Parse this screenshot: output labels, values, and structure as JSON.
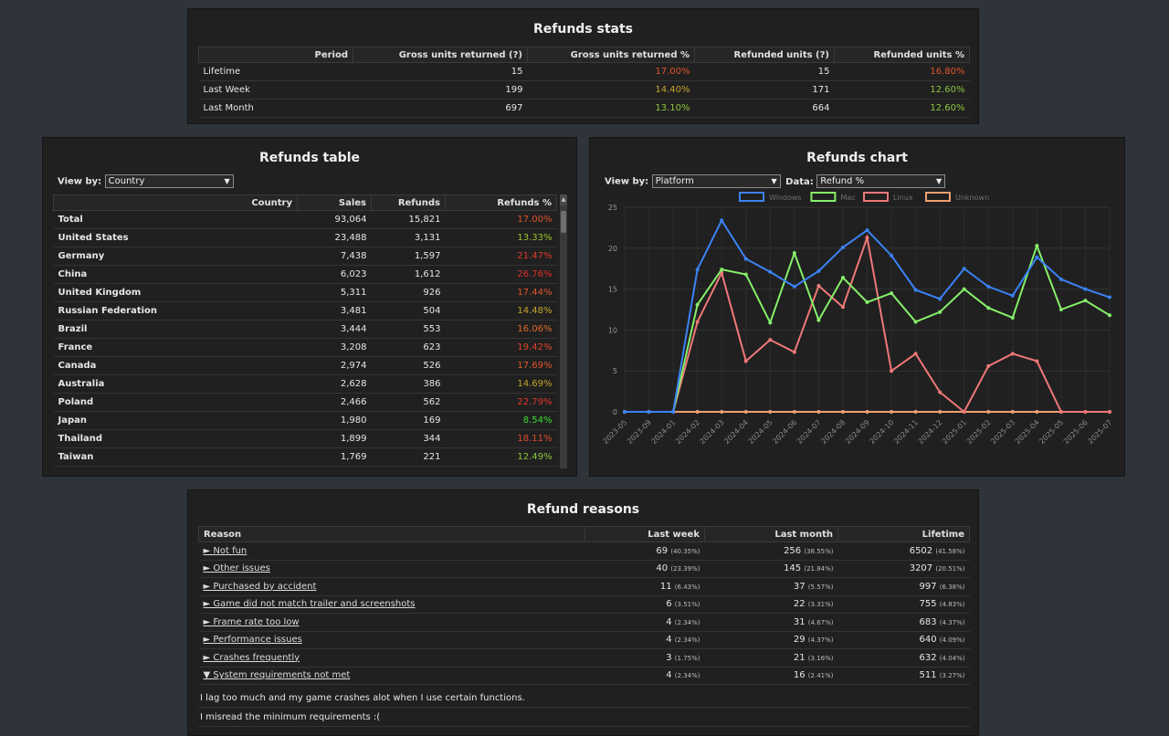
{
  "stats": {
    "title": "Refunds stats",
    "headers": [
      "Period",
      "Gross units returned (?)",
      "Gross units returned %",
      "Refunded units (?)",
      "Refunded units %"
    ],
    "rows": [
      {
        "period": "Lifetime",
        "gross": "15",
        "gross_pct": "17.00%",
        "gross_pct_color": "#e0552b",
        "refunded": "15",
        "refunded_pct": "16.80%",
        "refunded_pct_color": "#e0552b"
      },
      {
        "period": "Last Week",
        "gross": "199",
        "gross_pct": "14.40%",
        "gross_pct_color": "#c4a42a",
        "refunded": "171",
        "refunded_pct": "12.60%",
        "refunded_pct_color": "#8cc63f"
      },
      {
        "period": "Last Month",
        "gross": "697",
        "gross_pct": "13.10%",
        "gross_pct_color": "#8cc63f",
        "refunded": "664",
        "refunded_pct": "12.60%",
        "refunded_pct_color": "#8cc63f"
      }
    ]
  },
  "refunds_table": {
    "title": "Refunds table",
    "view_by_label": "View by:",
    "view_by_value": "Country",
    "headers": [
      "Country",
      "Sales",
      "Refunds",
      "Refunds %"
    ],
    "rows": [
      {
        "country": "Total",
        "sales": "93,064",
        "refunds": "15,821",
        "pct": "17.00%",
        "color": "#e0552b"
      },
      {
        "country": "United States",
        "sales": "23,488",
        "refunds": "3,131",
        "pct": "13.33%",
        "color": "#9cbf2e"
      },
      {
        "country": "Germany",
        "sales": "7,438",
        "refunds": "1,597",
        "pct": "21.47%",
        "color": "#e03a2b"
      },
      {
        "country": "China",
        "sales": "6,023",
        "refunds": "1,612",
        "pct": "26.76%",
        "color": "#e0302b"
      },
      {
        "country": "United Kingdom",
        "sales": "5,311",
        "refunds": "926",
        "pct": "17.44%",
        "color": "#e0552b"
      },
      {
        "country": "Russian Federation",
        "sales": "3,481",
        "refunds": "504",
        "pct": "14.48%",
        "color": "#c4a42a"
      },
      {
        "country": "Brazil",
        "sales": "3,444",
        "refunds": "553",
        "pct": "16.06%",
        "color": "#e06a2b"
      },
      {
        "country": "France",
        "sales": "3,208",
        "refunds": "623",
        "pct": "19.42%",
        "color": "#e0452b"
      },
      {
        "country": "Canada",
        "sales": "2,974",
        "refunds": "526",
        "pct": "17.69%",
        "color": "#e0552b"
      },
      {
        "country": "Australia",
        "sales": "2,628",
        "refunds": "386",
        "pct": "14.69%",
        "color": "#c4a42a"
      },
      {
        "country": "Poland",
        "sales": "2,466",
        "refunds": "562",
        "pct": "22.79%",
        "color": "#e0352b"
      },
      {
        "country": "Japan",
        "sales": "1,980",
        "refunds": "169",
        "pct": "8.54%",
        "color": "#3ddc2b"
      },
      {
        "country": "Thailand",
        "sales": "1,899",
        "refunds": "344",
        "pct": "18.11%",
        "color": "#e04a2b"
      },
      {
        "country": "Taiwan",
        "sales": "1,769",
        "refunds": "221",
        "pct": "12.49%",
        "color": "#8cc63f"
      }
    ]
  },
  "refunds_chart": {
    "title": "Refunds chart",
    "view_by_label": "View by:",
    "view_by_value": "Platform",
    "data_label": "Data:",
    "data_value": "Refund %"
  },
  "chart_data": {
    "type": "line",
    "categories": [
      "2023-05",
      "2023-09",
      "2024-01",
      "2024-02",
      "2024-03",
      "2024-04",
      "2024-05",
      "2024-06",
      "2024-07",
      "2024-08",
      "2024-09",
      "2024-10",
      "2024-11",
      "2024-12",
      "2025-01",
      "2025-02",
      "2025-03",
      "2025-04",
      "2025-05",
      "2025-06",
      "2025-07"
    ],
    "ylim": [
      0,
      25
    ],
    "yticks": [
      0,
      5,
      10,
      15,
      20,
      25
    ],
    "grid": true,
    "legend_position": "top",
    "series": [
      {
        "name": "Windows",
        "color": "#3b82f6",
        "values": [
          0,
          0,
          0,
          17.4,
          23.4,
          18.7,
          17.1,
          15.3,
          17.2,
          20.1,
          22.2,
          19.1,
          14.9,
          13.8,
          17.5,
          15.3,
          14.2,
          18.9,
          16.2,
          15.0,
          14.0
        ]
      },
      {
        "name": "Mac",
        "color": "#86ef6a",
        "values": [
          0,
          0,
          0,
          13.1,
          17.4,
          16.8,
          10.9,
          19.4,
          11.2,
          16.4,
          13.4,
          14.5,
          11.0,
          12.2,
          15.0,
          12.7,
          11.5,
          20.3,
          12.5,
          13.6,
          11.8
        ]
      },
      {
        "name": "Linux",
        "color": "#f07878",
        "values": [
          0,
          0,
          0,
          11.0,
          17.0,
          6.2,
          8.8,
          7.3,
          15.4,
          12.8,
          21.3,
          5.0,
          7.1,
          2.4,
          0,
          5.6,
          7.1,
          6.2,
          0,
          0,
          0
        ]
      },
      {
        "name": "Unknown",
        "color": "#f0a070",
        "values": [
          0,
          0,
          0,
          0,
          0,
          0,
          0,
          0,
          0,
          0,
          0,
          0,
          0,
          0,
          0,
          0,
          0,
          0,
          0,
          0,
          0
        ]
      }
    ]
  },
  "reasons": {
    "title": "Refund reasons",
    "headers": [
      "Reason",
      "Last week",
      "Last month",
      "Lifetime"
    ],
    "rows": [
      {
        "reason": "► Not fun",
        "lw": "69",
        "lw_pct": "(40.35%)",
        "lm": "256",
        "lm_pct": "(38.55%)",
        "lt": "6502",
        "lt_pct": "(41.58%)"
      },
      {
        "reason": "► Other issues",
        "lw": "40",
        "lw_pct": "(23.39%)",
        "lm": "145",
        "lm_pct": "(21.84%)",
        "lt": "3207",
        "lt_pct": "(20.51%)"
      },
      {
        "reason": "► Purchased by accident",
        "lw": "11",
        "lw_pct": "(6.43%)",
        "lm": "37",
        "lm_pct": "(5.57%)",
        "lt": "997",
        "lt_pct": "(6.38%)"
      },
      {
        "reason": "► Game did not match trailer and screenshots",
        "lw": "6",
        "lw_pct": "(3.51%)",
        "lm": "22",
        "lm_pct": "(3.31%)",
        "lt": "755",
        "lt_pct": "(4.83%)"
      },
      {
        "reason": "► Frame rate too low",
        "lw": "4",
        "lw_pct": "(2.34%)",
        "lm": "31",
        "lm_pct": "(4.67%)",
        "lt": "683",
        "lt_pct": "(4.37%)"
      },
      {
        "reason": "► Performance issues",
        "lw": "4",
        "lw_pct": "(2.34%)",
        "lm": "29",
        "lm_pct": "(4.37%)",
        "lt": "640",
        "lt_pct": "(4.09%)"
      },
      {
        "reason": "► Crashes frequently",
        "lw": "3",
        "lw_pct": "(1.75%)",
        "lm": "21",
        "lm_pct": "(3.16%)",
        "lt": "632",
        "lt_pct": "(4.04%)"
      },
      {
        "reason": "▼ System requirements not met",
        "lw": "4",
        "lw_pct": "(2.34%)",
        "lm": "16",
        "lm_pct": "(2.41%)",
        "lt": "511",
        "lt_pct": "(3.27%)"
      }
    ],
    "comments": [
      "I lag too much and my game crashes alot when I use certain functions.",
      "I misread the minimum requirements :("
    ]
  }
}
